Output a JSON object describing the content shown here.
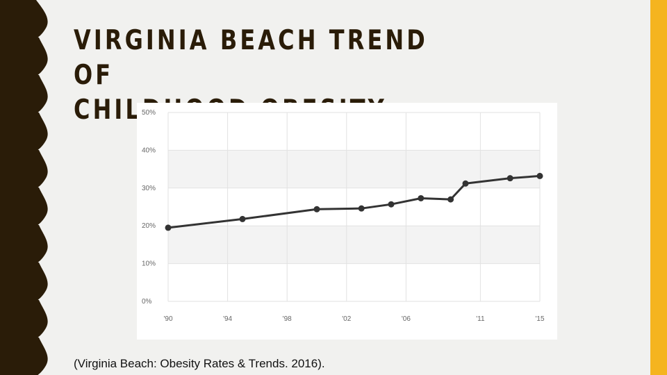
{
  "slide": {
    "title_line1": "VIRGINIA BEACH TREND OF",
    "title_line2": "CHILDHOOD OBESITY",
    "citation": "(Virginia Beach: Obesity Rates & Trends. 2016).",
    "colors": {
      "title": "#2a1c08",
      "left_band": "#2a1c08",
      "right_band": "#f5b41f",
      "background": "#f1f1ef"
    }
  },
  "chart_data": {
    "type": "line",
    "title": "",
    "xlabel": "",
    "ylabel": "",
    "xlim": [
      1990,
      2015
    ],
    "ylim": [
      0,
      50
    ],
    "yticks": [
      0,
      10,
      20,
      30,
      40,
      50
    ],
    "ytick_labels": [
      "0%",
      "10%",
      "20%",
      "30%",
      "40%",
      "50%"
    ],
    "xticks": [
      1990,
      1994,
      1998,
      2002,
      2006,
      2011,
      2015
    ],
    "xtick_labels": [
      "'90",
      "'94",
      "'98",
      "'02",
      "'06",
      "'11",
      "'15"
    ],
    "grid": true,
    "line_color": "#333333",
    "series": [
      {
        "x": [
          1990,
          1995,
          2000,
          2003,
          2005,
          2007,
          2009,
          2010,
          2013,
          2015
        ],
        "values": [
          19.5,
          21.8,
          24.4,
          24.6,
          25.7,
          27.3,
          27.0,
          31.2,
          32.6,
          33.2
        ]
      }
    ]
  }
}
